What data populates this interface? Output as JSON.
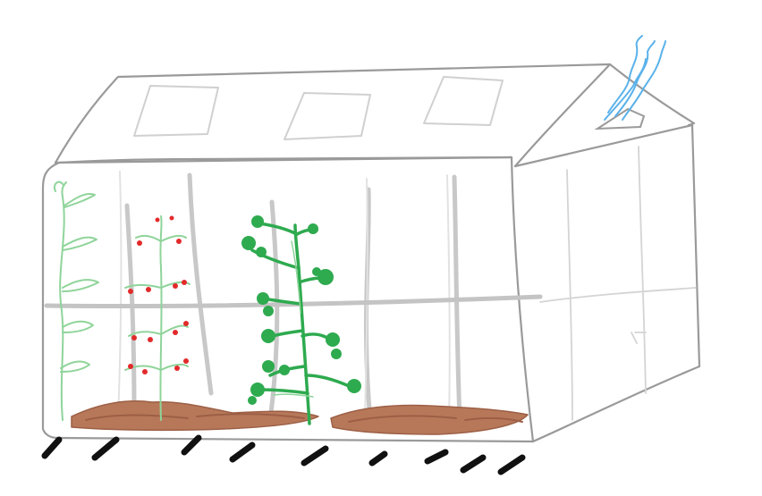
{
  "scene": {
    "subject": "greenhouse-sketch",
    "colors": {
      "background": "#ffffff",
      "frame": "#9a9a9a",
      "frame_light": "#cfcfcf",
      "rib": "#c8c8c8",
      "soil": "#b7785a",
      "soil_dark": "#9c5f45",
      "plant_light": "#8fd49a",
      "plant_mid": "#2eaa4f",
      "plant_dark": "#1f9a3b",
      "tomato": "#e22a2a",
      "smoke": "#5ab2ea",
      "feet": "#111111"
    }
  }
}
